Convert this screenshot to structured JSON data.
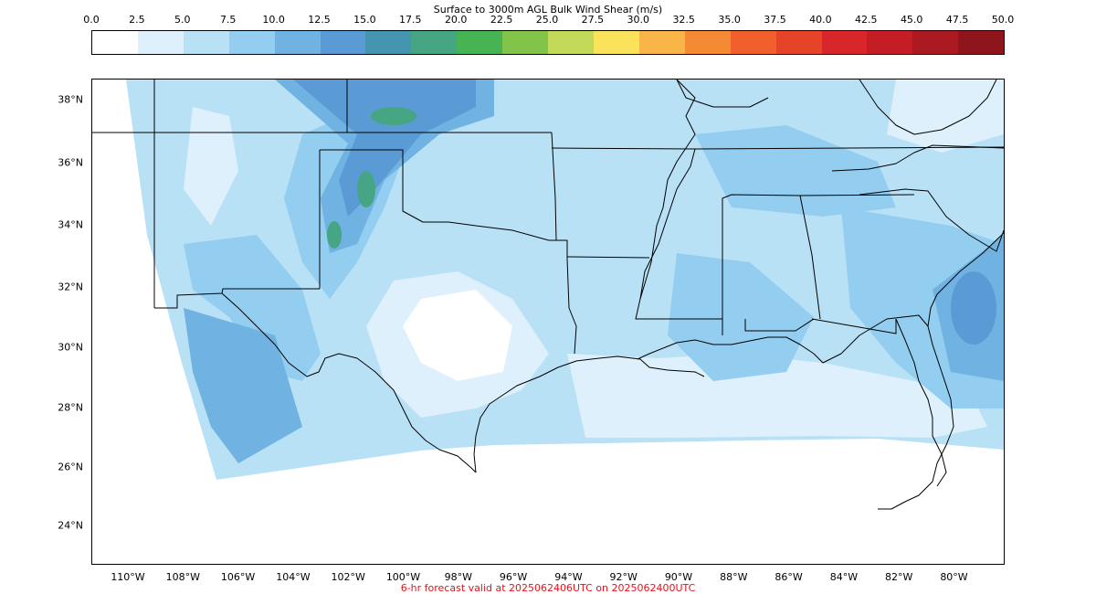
{
  "colorbar": {
    "title": "Surface to 3000m AGL Bulk Wind Shear (m/s)",
    "ticks": [
      "0.0",
      "2.5",
      "5.0",
      "7.5",
      "10.0",
      "12.5",
      "15.0",
      "17.5",
      "20.0",
      "22.5",
      "25.0",
      "27.5",
      "30.0",
      "32.5",
      "35.0",
      "37.5",
      "40.0",
      "42.5",
      "45.0",
      "47.5",
      "50.0"
    ],
    "colors": [
      "#ffffff",
      "#ddf0fb",
      "#b9e1f6",
      "#93cdef",
      "#70b2e1",
      "#5b9bd5",
      "#4595b1",
      "#46a684",
      "#47b353",
      "#82c34a",
      "#c1d858",
      "#fae35a",
      "#f9b548",
      "#f58a34",
      "#f05f2c",
      "#e54428",
      "#d8262a",
      "#c41d26",
      "#a9191f",
      "#8e151b"
    ]
  },
  "map": {
    "lat_labels": [
      "38°N",
      "36°N",
      "34°N",
      "32°N",
      "30°N",
      "28°N",
      "26°N",
      "24°N"
    ],
    "lon_labels": [
      "110°W",
      "108°W",
      "106°W",
      "104°W",
      "102°W",
      "100°W",
      "98°W",
      "96°W",
      "94°W",
      "92°W",
      "90°W",
      "88°W",
      "86°W",
      "84°W",
      "82°W",
      "80°W"
    ]
  },
  "footer": {
    "valid_text": "6-hr forecast valid at 2025062406UTC on 2025062400UTC"
  }
}
